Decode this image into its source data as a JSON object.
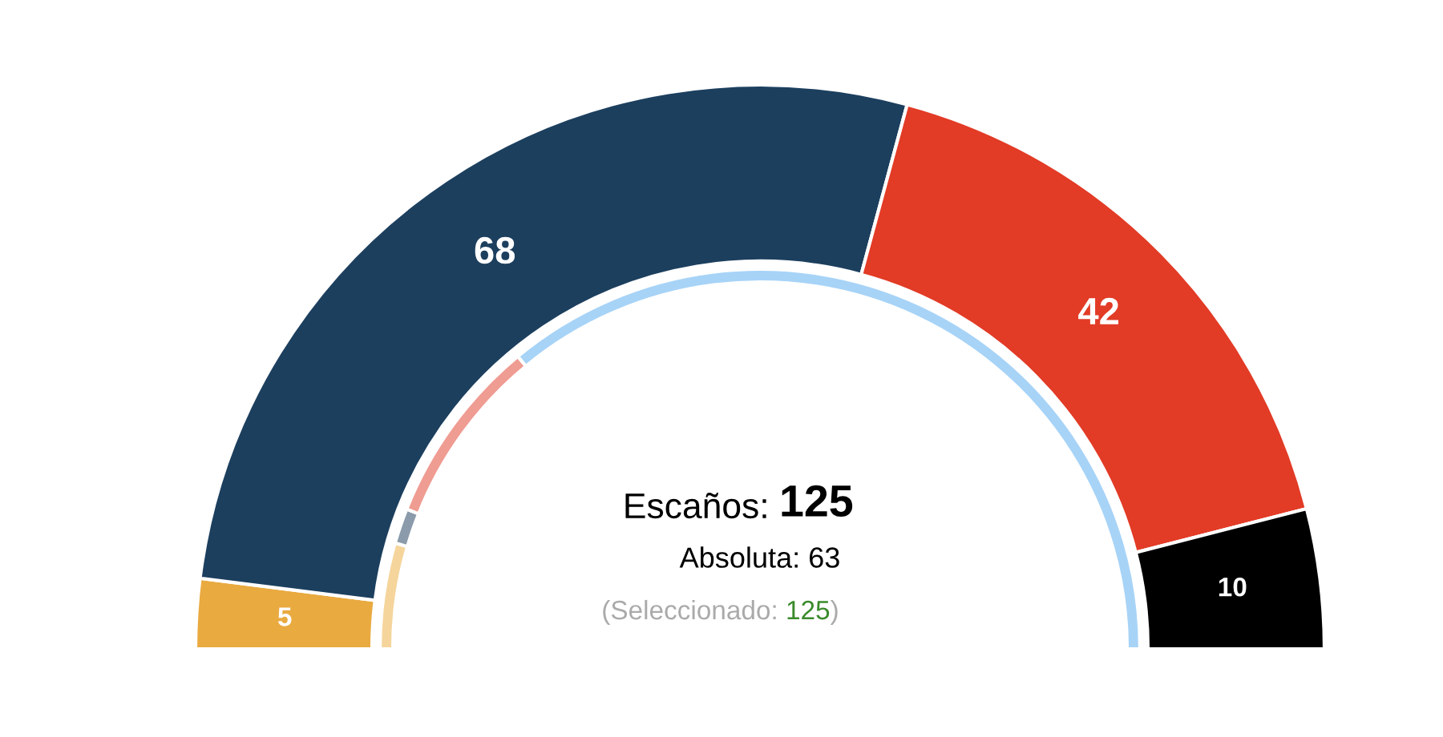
{
  "chart_data": {
    "type": "donut",
    "series": [
      {
        "values": [
          5,
          68,
          42,
          10
        ],
        "colors": [
          "#e9aa40",
          "#1c3f5e",
          "#e23b26",
          "#000000"
        ],
        "value_labels": [
          "5",
          "68",
          "42",
          "10"
        ]
      },
      {
        "values": [
          9,
          3,
          16,
          72
        ],
        "colors": [
          "#f5d59c",
          "#8b9bab",
          "#ef9c92",
          "#a7d3f7"
        ]
      }
    ],
    "annotations": [
      "Escaños: 125",
      "Absoluta: 63",
      "(Seleccionado: 125)"
    ]
  }
}
